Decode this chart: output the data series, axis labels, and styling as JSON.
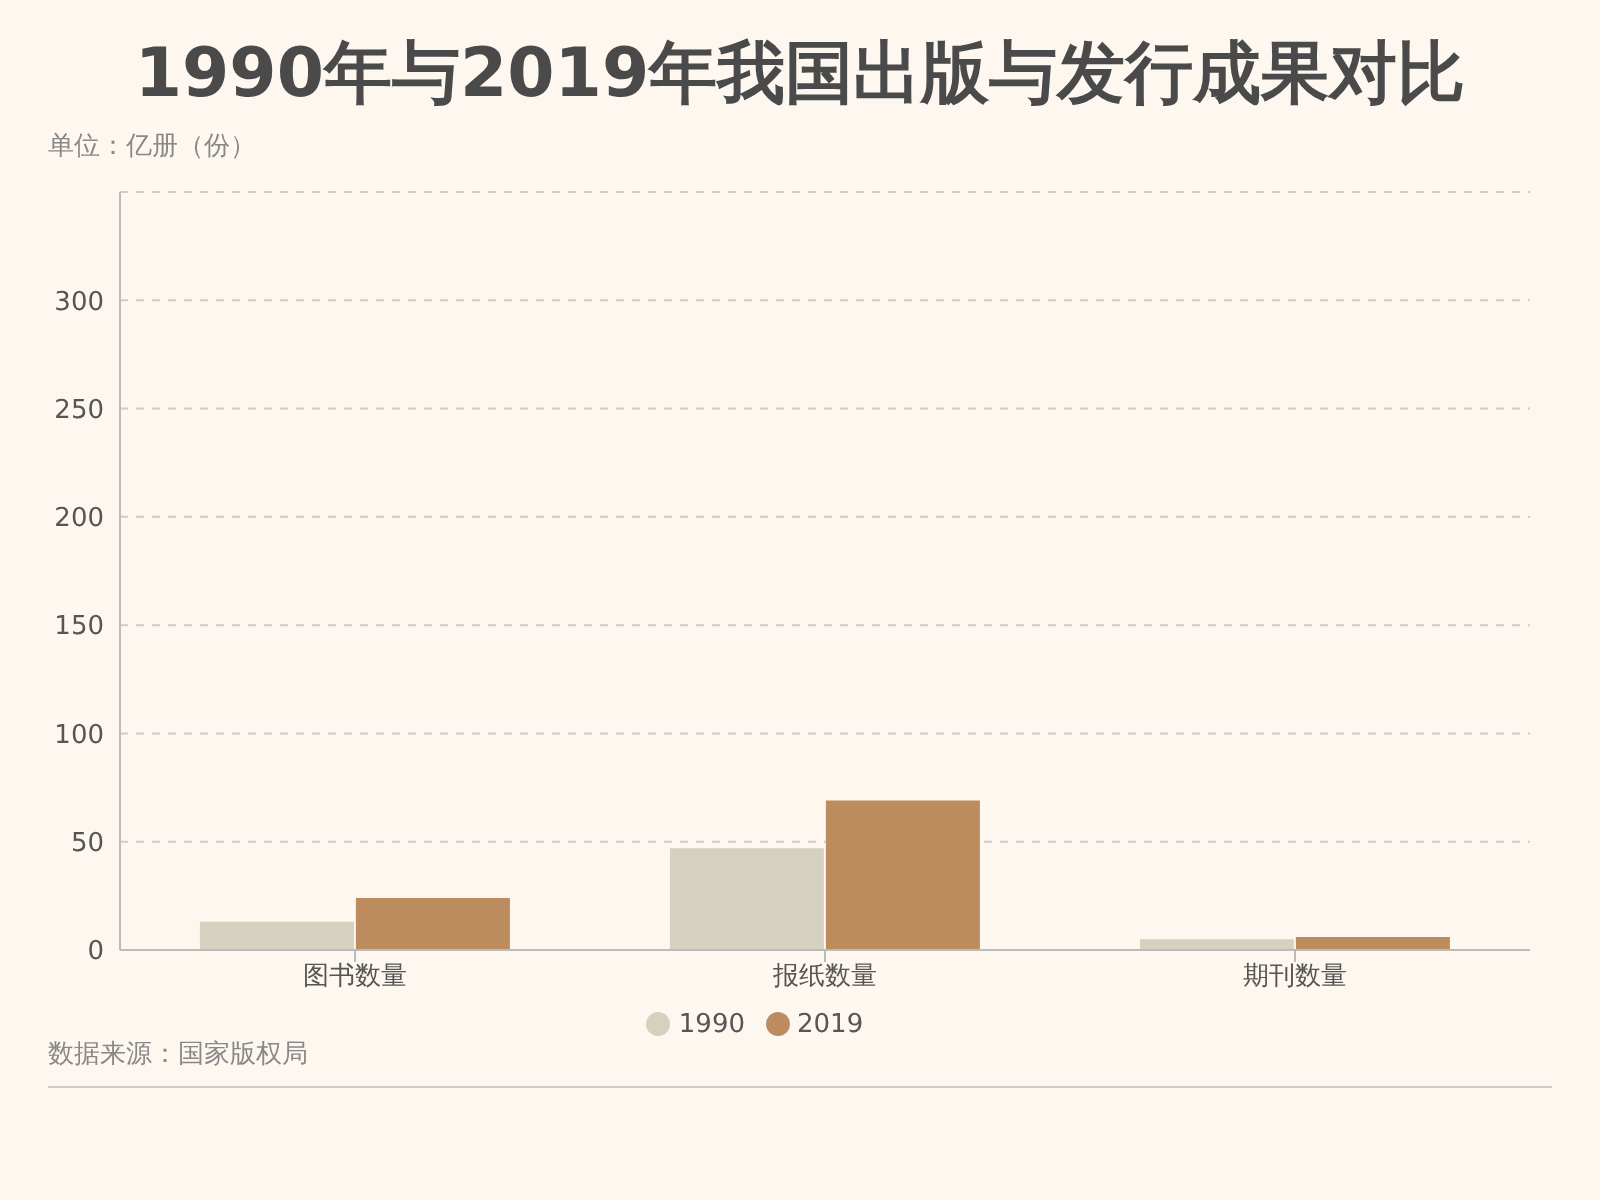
{
  "chart_data": {
    "type": "bar",
    "title": "1990年与2019年我国出版与发行成果对比",
    "ylabel": "单位：亿册（份）",
    "categories": [
      "图书数量",
      "报纸数量",
      "期刊数量"
    ],
    "series": [
      {
        "name": "1990",
        "color": "#d5d1bf",
        "values": [
          13,
          47,
          5
        ]
      },
      {
        "name": "2019",
        "color": "#bc8c5f",
        "values": [
          24,
          69,
          6
        ]
      }
    ],
    "ylim": [
      0,
      350
    ],
    "yticks": [
      0,
      50,
      100,
      150,
      200,
      250,
      300
    ],
    "grid": "y",
    "legend": "bottom",
    "annotations": [
      "数据来源：国家版权局"
    ]
  }
}
